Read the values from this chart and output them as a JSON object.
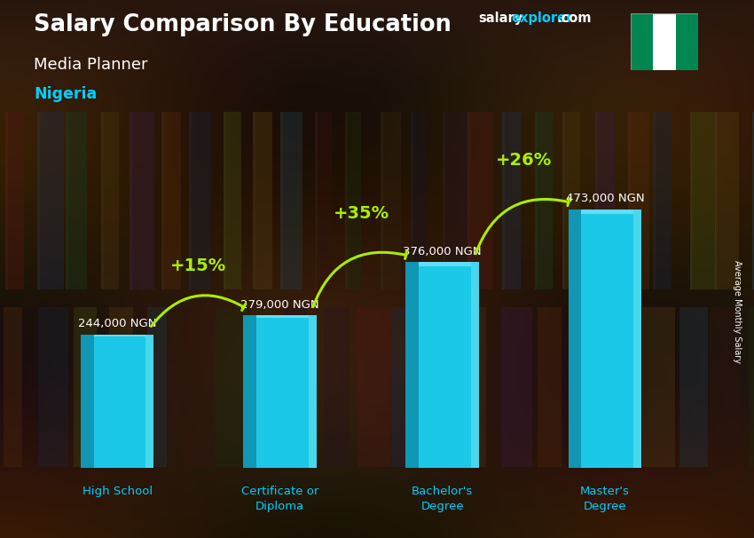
{
  "title": "Salary Comparison By Education",
  "subtitle": "Media Planner",
  "country": "Nigeria",
  "categories": [
    "High School",
    "Certificate or\nDiploma",
    "Bachelor's\nDegree",
    "Master's\nDegree"
  ],
  "values": [
    244000,
    279000,
    376000,
    473000
  ],
  "value_labels": [
    "244,000 NGN",
    "279,000 NGN",
    "376,000 NGN",
    "473,000 NGN"
  ],
  "pct_changes": [
    "+15%",
    "+35%",
    "+26%"
  ],
  "bar_color_main": "#1CC8E8",
  "bar_color_light": "#5DDEEF",
  "bar_color_dark": "#0E8FAA",
  "bar_color_side": "#0A6B82",
  "text_color_white": "#FFFFFF",
  "text_color_cyan": "#00CFFF",
  "text_color_green": "#AAEE00",
  "ylabel": "Average Monthly Salary",
  "ylim": [
    0,
    570000
  ],
  "site_salary_color": "#FFFFFF",
  "site_explorer_color": "#00CFFF",
  "nigeria_green": "#008751",
  "fig_width": 8.5,
  "fig_height": 6.06,
  "bg_colors": [
    "#3d2510",
    "#5a3820",
    "#2a1a0a",
    "#4a2e12",
    "#382010"
  ],
  "bar_positions": [
    0.5,
    2.5,
    4.5,
    6.5
  ],
  "bar_width": 0.9
}
